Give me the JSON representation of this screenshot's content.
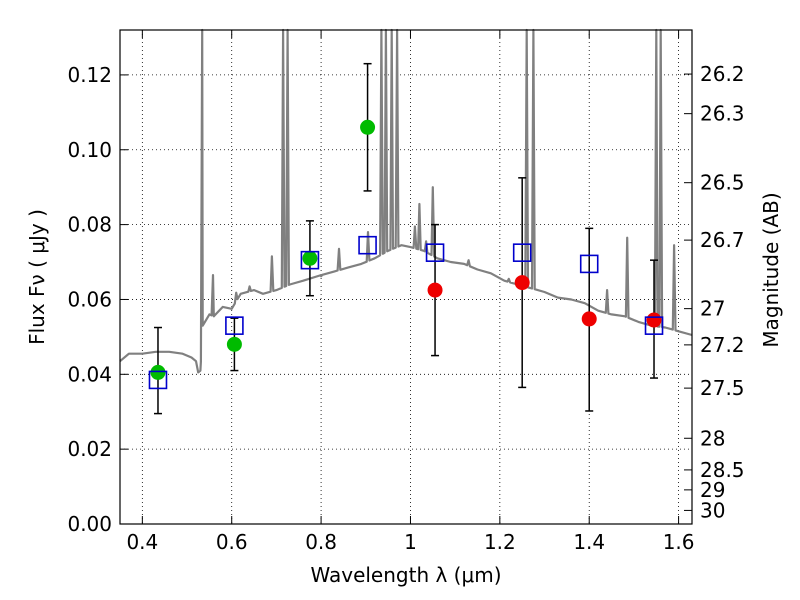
{
  "chart_data": {
    "type": "scatter",
    "title": "",
    "xlabel": "Wavelength  λ (μm)",
    "ylabel": "Flux  Fν  ( μJy )",
    "y2label": "Magnitude (AB)",
    "xlim": [
      0.35,
      1.63
    ],
    "ylim": [
      0.0,
      0.132
    ],
    "grid": true,
    "grid_style": "dotted",
    "legend": "none",
    "x_ticks": [
      0.4,
      0.6,
      0.8,
      1.0,
      1.2,
      1.4,
      1.6
    ],
    "x_tick_labels": [
      "0.4",
      "0.6",
      "0.8",
      "1",
      "1.2",
      "1.4",
      "1.6"
    ],
    "y_ticks": [
      0.0,
      0.02,
      0.04,
      0.06,
      0.08,
      0.1,
      0.12
    ],
    "y_tick_labels": [
      "0.00",
      "0.02",
      "0.04",
      "0.06",
      "0.08",
      "0.10",
      "0.12"
    ],
    "y2_ticks": [
      {
        "label": "26.2",
        "mag": 26.2
      },
      {
        "label": "26.3",
        "mag": 26.3
      },
      {
        "label": "26.5",
        "mag": 26.5
      },
      {
        "label": "26.7",
        "mag": 26.7
      },
      {
        "label": "27",
        "mag": 27.0
      },
      {
        "label": "27.2",
        "mag": 27.2
      },
      {
        "label": "27.5",
        "mag": 27.5
      },
      {
        "label": "28",
        "mag": 28.0
      },
      {
        "label": "28.5",
        "mag": 28.5
      },
      {
        "label": "29",
        "mag": 29.0
      },
      {
        "label": "30",
        "mag": 30.0
      }
    ],
    "series": [
      {
        "kind": "observed-optical",
        "color": "#00bb00",
        "marker": "circle",
        "points": [
          {
            "x": 0.435,
            "y": 0.0405,
            "err_lo": 0.0295,
            "err_hi": 0.0525
          },
          {
            "x": 0.606,
            "y": 0.048,
            "err_lo": 0.041,
            "err_hi": 0.055
          },
          {
            "x": 0.775,
            "y": 0.071,
            "err_lo": 0.061,
            "err_hi": 0.081
          },
          {
            "x": 0.904,
            "y": 0.106,
            "err_lo": 0.089,
            "err_hi": 0.123
          }
        ]
      },
      {
        "kind": "observed-infrared",
        "color": "#ee0000",
        "marker": "circle",
        "points": [
          {
            "x": 1.055,
            "y": 0.0625,
            "err_lo": 0.045,
            "err_hi": 0.08
          },
          {
            "x": 1.25,
            "y": 0.0645,
            "err_lo": 0.0365,
            "err_hi": 0.0925
          },
          {
            "x": 1.4,
            "y": 0.0548,
            "err_lo": 0.0302,
            "err_hi": 0.079
          },
          {
            "x": 1.545,
            "y": 0.0545,
            "err_lo": 0.039,
            "err_hi": 0.0705
          }
        ]
      },
      {
        "kind": "model-synthetic",
        "color": "#0000cc",
        "marker": "open-square",
        "points": [
          {
            "x": 0.435,
            "y": 0.0385
          },
          {
            "x": 0.606,
            "y": 0.053
          },
          {
            "x": 0.775,
            "y": 0.0705
          },
          {
            "x": 0.904,
            "y": 0.0745
          },
          {
            "x": 1.055,
            "y": 0.0725
          },
          {
            "x": 1.25,
            "y": 0.0725
          },
          {
            "x": 1.4,
            "y": 0.0695
          },
          {
            "x": 1.545,
            "y": 0.053
          }
        ]
      }
    ],
    "model_spectrum": {
      "kind": "line",
      "color": "#808080",
      "continuum": [
        [
          0.35,
          0.0435
        ],
        [
          0.37,
          0.0455
        ],
        [
          0.4,
          0.0455
        ],
        [
          0.43,
          0.046
        ],
        [
          0.46,
          0.046
        ],
        [
          0.49,
          0.0455
        ],
        [
          0.51,
          0.0445
        ],
        [
          0.52,
          0.0435
        ],
        [
          0.525,
          0.0405
        ],
        [
          0.53,
          0.041
        ],
        [
          0.535,
          0.053
        ],
        [
          0.55,
          0.056
        ],
        [
          0.56,
          0.0555
        ],
        [
          0.58,
          0.058
        ],
        [
          0.6,
          0.0575
        ],
        [
          0.62,
          0.0615
        ],
        [
          0.65,
          0.0625
        ],
        [
          0.67,
          0.0615
        ],
        [
          0.7,
          0.0625
        ],
        [
          0.73,
          0.064
        ],
        [
          0.76,
          0.065
        ],
        [
          0.8,
          0.0665
        ],
        [
          0.83,
          0.0675
        ],
        [
          0.86,
          0.0685
        ],
        [
          0.89,
          0.0695
        ],
        [
          0.92,
          0.071
        ],
        [
          0.95,
          0.073
        ],
        [
          0.98,
          0.0745
        ],
        [
          1.0,
          0.074
        ],
        [
          1.03,
          0.073
        ],
        [
          1.06,
          0.071
        ],
        [
          1.09,
          0.07
        ],
        [
          1.12,
          0.0695
        ],
        [
          1.15,
          0.068
        ],
        [
          1.18,
          0.067
        ],
        [
          1.21,
          0.065
        ],
        [
          1.24,
          0.064
        ],
        [
          1.27,
          0.063
        ],
        [
          1.3,
          0.062
        ],
        [
          1.33,
          0.0605
        ],
        [
          1.36,
          0.06
        ],
        [
          1.39,
          0.059
        ],
        [
          1.42,
          0.057
        ],
        [
          1.45,
          0.056
        ],
        [
          1.48,
          0.0555
        ],
        [
          1.51,
          0.054
        ],
        [
          1.54,
          0.053
        ],
        [
          1.57,
          0.0525
        ],
        [
          1.6,
          0.0515
        ],
        [
          1.63,
          0.0505
        ]
      ],
      "emission_lines": [
        [
          0.534,
          0.132
        ],
        [
          0.558,
          0.0665
        ],
        [
          0.61,
          0.0618
        ],
        [
          0.64,
          0.0635
        ],
        [
          0.69,
          0.0715
        ],
        [
          0.715,
          0.132
        ],
        [
          0.725,
          0.132
        ],
        [
          0.8,
          0.0662
        ],
        [
          0.84,
          0.0735
        ],
        [
          0.905,
          0.078
        ],
        [
          0.935,
          0.132
        ],
        [
          0.945,
          0.132
        ],
        [
          0.958,
          0.132
        ],
        [
          0.97,
          0.132
        ],
        [
          1.01,
          0.0795
        ],
        [
          1.02,
          0.0855
        ],
        [
          1.035,
          0.0755
        ],
        [
          1.05,
          0.09
        ],
        [
          1.13,
          0.0705
        ],
        [
          1.22,
          0.0655
        ],
        [
          1.26,
          0.132
        ],
        [
          1.275,
          0.132
        ],
        [
          1.44,
          0.0625
        ],
        [
          1.485,
          0.0765
        ],
        [
          1.55,
          0.132
        ],
        [
          1.56,
          0.132
        ],
        [
          1.59,
          0.0745
        ]
      ]
    }
  }
}
